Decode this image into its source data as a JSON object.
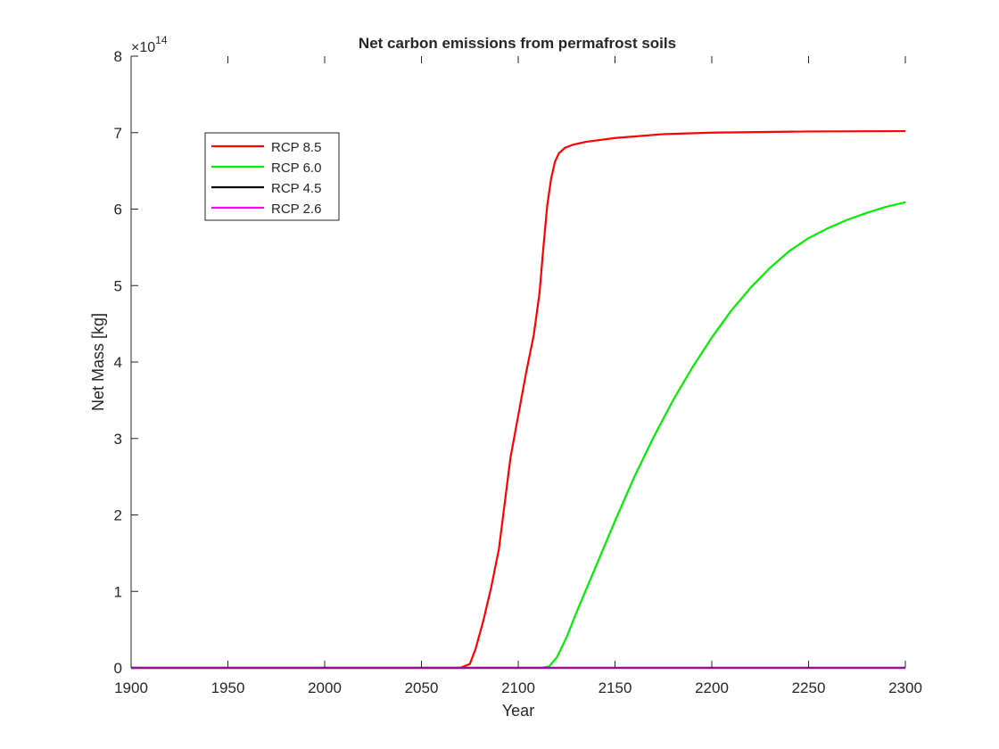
{
  "chart_data": {
    "type": "line",
    "title": "Net carbon emissions from permafrost soils",
    "xlabel": "Year",
    "ylabel": "Net Mass [kg]",
    "y_exponent_label": "×10",
    "y_exponent_power": "14",
    "xlim": [
      1900,
      2300
    ],
    "ylim": [
      0,
      8
    ],
    "xticks": [
      1900,
      1950,
      2000,
      2050,
      2100,
      2150,
      2200,
      2250,
      2300
    ],
    "yticks": [
      0,
      1,
      2,
      3,
      4,
      5,
      6,
      7,
      8
    ],
    "y_scale_multiplier": 100000000000000.0,
    "grid": false,
    "legend_position": "top-left",
    "series": [
      {
        "name": "RCP 8.5",
        "color": "#ff0000",
        "x": [
          1900,
          2070,
          2075,
          2078,
          2082,
          2086,
          2090,
          2093,
          2096,
          2100,
          2104,
          2108,
          2111,
          2113,
          2115,
          2117,
          2119,
          2121,
          2124,
          2128,
          2135,
          2150,
          2175,
          2200,
          2250,
          2300
        ],
        "y": [
          0,
          0,
          0.05,
          0.25,
          0.62,
          1.05,
          1.55,
          2.15,
          2.75,
          3.3,
          3.85,
          4.35,
          4.9,
          5.5,
          6.05,
          6.4,
          6.62,
          6.73,
          6.8,
          6.84,
          6.88,
          6.93,
          6.98,
          7.0,
          7.015,
          7.02
        ]
      },
      {
        "name": "RCP 6.0",
        "color": "#00ee00",
        "x": [
          1900,
          2112,
          2116,
          2120,
          2125,
          2130,
          2140,
          2150,
          2160,
          2170,
          2180,
          2190,
          2200,
          2210,
          2220,
          2230,
          2240,
          2250,
          2260,
          2270,
          2280,
          2290,
          2300
        ],
        "y": [
          0,
          0,
          0.02,
          0.14,
          0.4,
          0.72,
          1.32,
          1.92,
          2.5,
          3.02,
          3.5,
          3.93,
          4.32,
          4.67,
          4.97,
          5.23,
          5.45,
          5.62,
          5.75,
          5.86,
          5.95,
          6.03,
          6.09
        ]
      },
      {
        "name": "RCP 4.5",
        "color": "#000000",
        "x": [
          1900,
          2300
        ],
        "y": [
          0,
          0
        ]
      },
      {
        "name": "RCP 2.6",
        "color": "#ff00ff",
        "x": [
          1900,
          2300
        ],
        "y": [
          0,
          0
        ]
      }
    ]
  }
}
